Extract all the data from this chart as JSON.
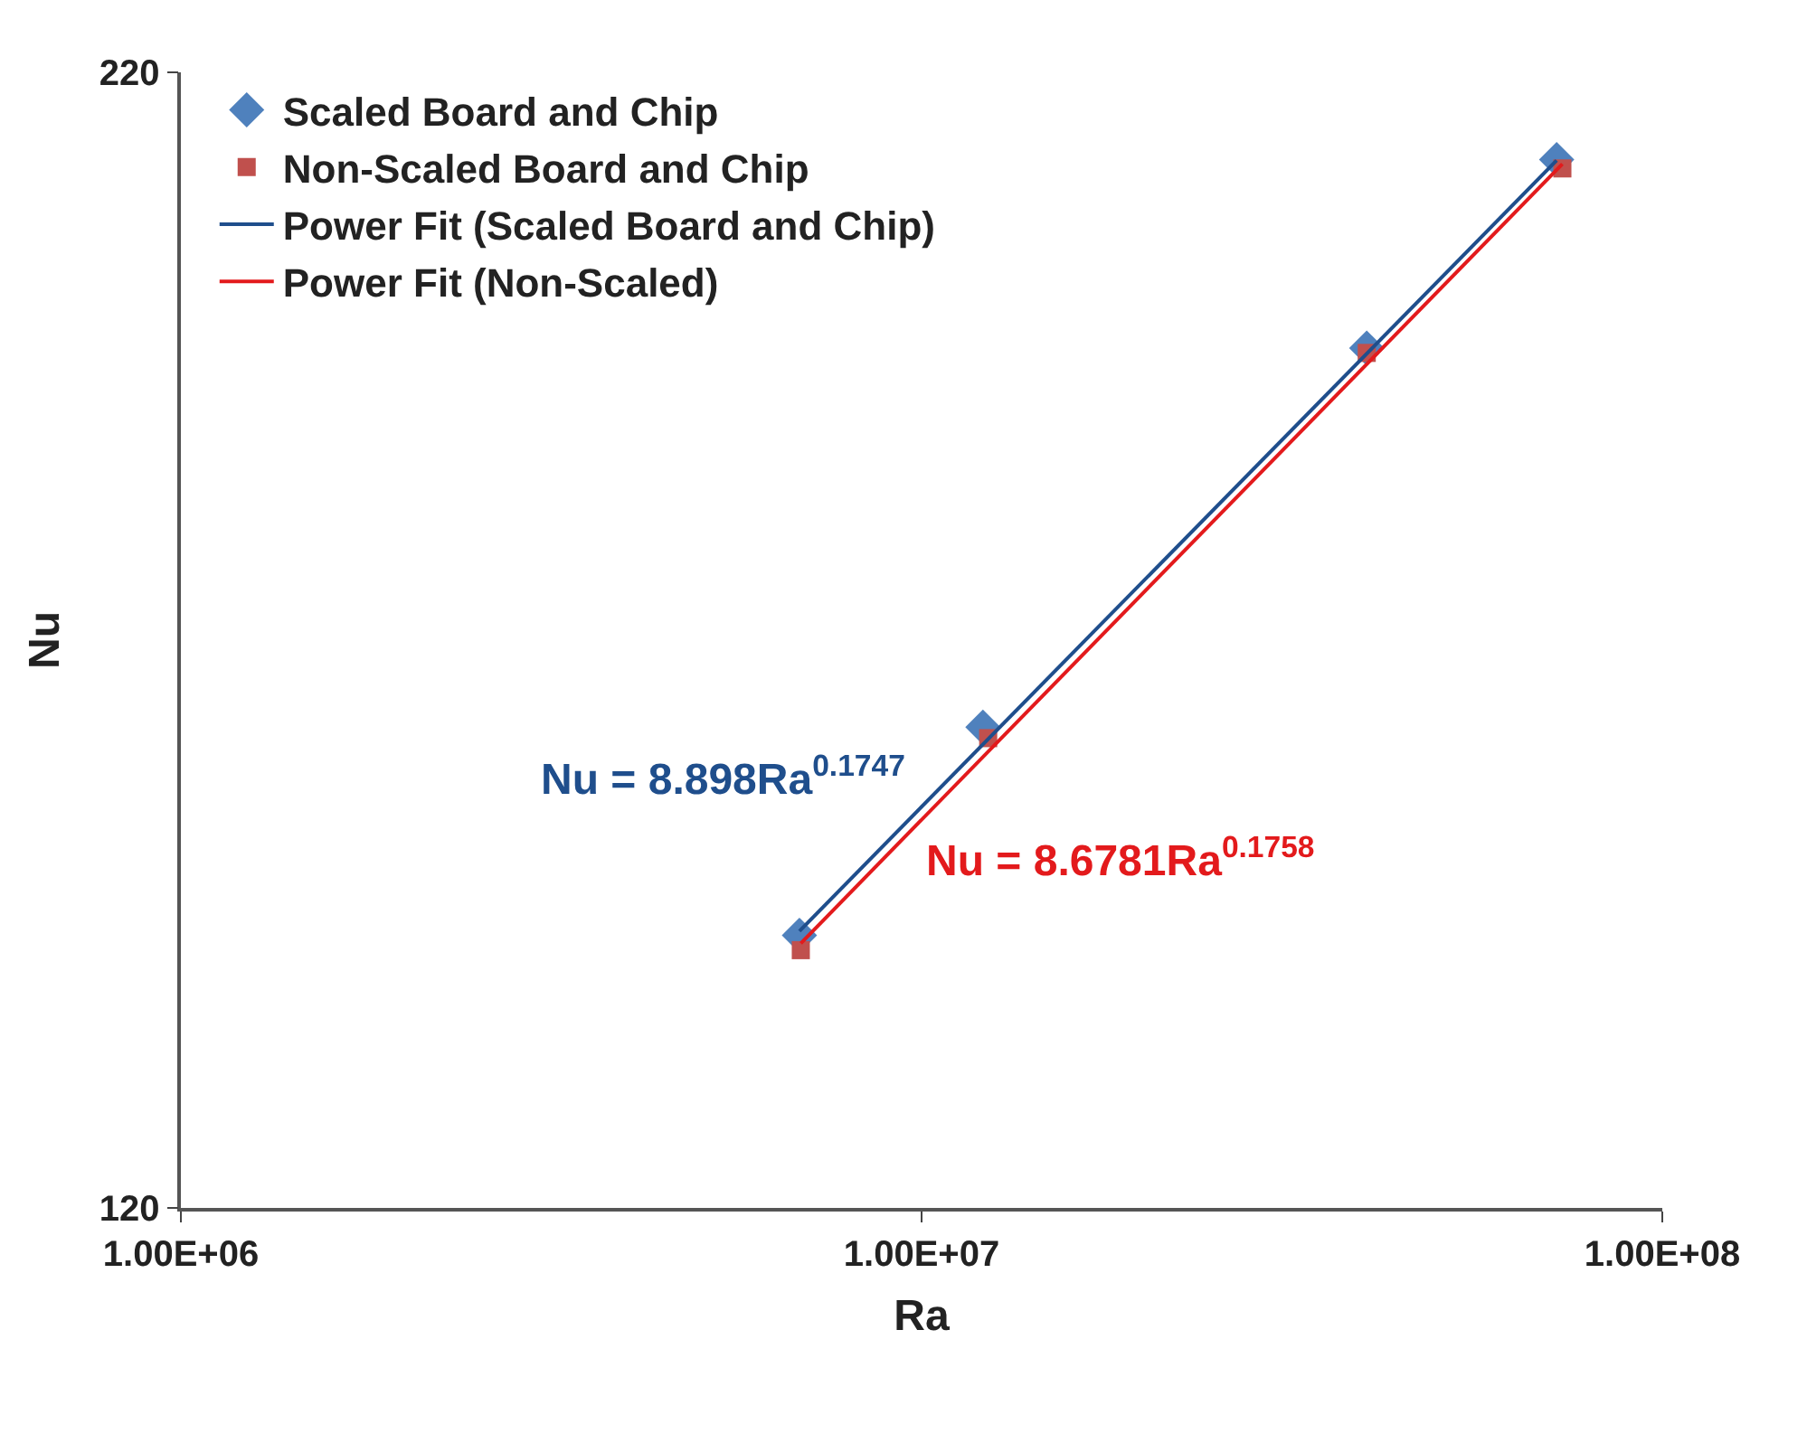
{
  "chart_data": {
    "type": "scatter",
    "xlabel": "Ra",
    "ylabel": "Nu",
    "log": "xy",
    "xlim": [
      1000000,
      100000000
    ],
    "xticks": [
      {
        "value": 1000000,
        "label": "1.00E+06"
      },
      {
        "value": 10000000,
        "label": "1.00E+07"
      },
      {
        "value": 100000000,
        "label": "1.00E+08"
      }
    ],
    "ylim": [
      120,
      220
    ],
    "yticks": [
      120,
      220
    ],
    "legend": "top left",
    "series": [
      {
        "name": "Scaled Board and Chip",
        "marker": "diamond",
        "color": "#4f81bd",
        "x": [
          6840000,
          12100000,
          39900000,
          72000000
        ],
        "values": [
          138.8,
          155.1,
          189.9,
          210.0
        ]
      },
      {
        "name": "Non-Scaled Board and Chip",
        "marker": "square",
        "color": "#c0504d",
        "x": [
          6870000,
          12300000,
          39900000,
          73300000
        ],
        "values": [
          137.7,
          154.2,
          189.4,
          209.0
        ]
      },
      {
        "name": "Power Fit (Scaled Board and Chip)",
        "type": "line",
        "line_style": "solid",
        "color": "#1f4e8c",
        "x": [
          6840000,
          72000000
        ],
        "values": [
          139.1,
          209.9
        ]
      },
      {
        "name": "Power Fit (Non-Scaled)",
        "type": "line",
        "line_style": "solid",
        "color": "#e31a1c",
        "x": [
          6870000,
          73300000
        ],
        "values": [
          138.2,
          209.5
        ]
      }
    ],
    "annotations": [
      "Nu = 8.898Ra$^{0.1747}$",
      "Nu = 8.6781Ra$^{0.1758}$"
    ]
  }
}
